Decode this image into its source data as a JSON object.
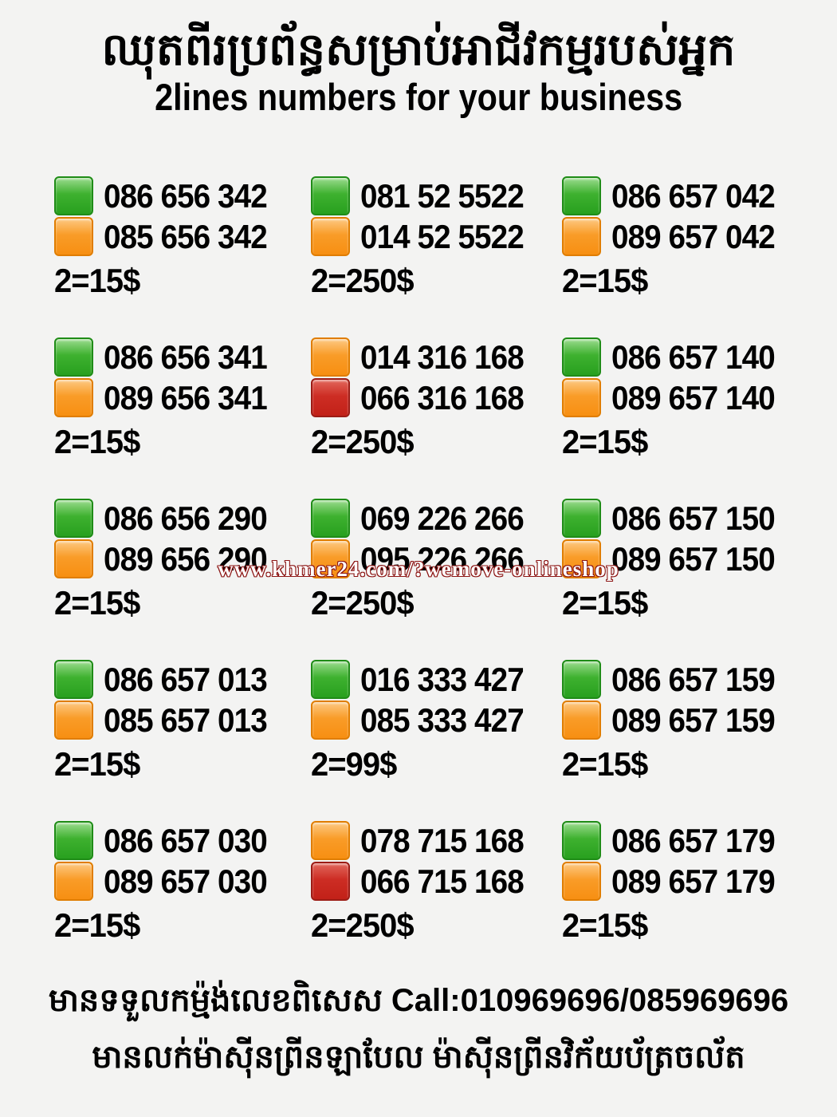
{
  "page": {
    "background_color": "#f3f3f2",
    "swatch_colors": {
      "green": "#2ca023",
      "orange": "#f7941e",
      "red": "#c9241c"
    }
  },
  "header": {
    "title_khmer": "ឈុតពីរប្រព័ន្ធសម្រាប់អាជីវកម្មរបស់អ្នក",
    "subtitle": "2lines numbers for your business"
  },
  "listings": [
    {
      "lines": [
        {
          "color": "green",
          "number": "086 656 342"
        },
        {
          "color": "orange",
          "number": "085 656 342"
        }
      ],
      "price": "2=15$"
    },
    {
      "lines": [
        {
          "color": "green",
          "number": "081 52 5522"
        },
        {
          "color": "orange",
          "number": "014 52 5522"
        }
      ],
      "price": "2=250$"
    },
    {
      "lines": [
        {
          "color": "green",
          "number": "086 657 042"
        },
        {
          "color": "orange",
          "number": "089 657 042"
        }
      ],
      "price": "2=15$"
    },
    {
      "lines": [
        {
          "color": "green",
          "number": "086 656 341"
        },
        {
          "color": "orange",
          "number": "089 656 341"
        }
      ],
      "price": "2=15$"
    },
    {
      "lines": [
        {
          "color": "orange",
          "number": "014 316 168"
        },
        {
          "color": "red",
          "number": "066 316 168"
        }
      ],
      "price": "2=250$"
    },
    {
      "lines": [
        {
          "color": "green",
          "number": "086 657 140"
        },
        {
          "color": "orange",
          "number": "089 657 140"
        }
      ],
      "price": "2=15$"
    },
    {
      "lines": [
        {
          "color": "green",
          "number": "086 656 290"
        },
        {
          "color": "orange",
          "number": "089 656 290"
        }
      ],
      "price": "2=15$"
    },
    {
      "lines": [
        {
          "color": "green",
          "number": "069 226 266"
        },
        {
          "color": "orange",
          "number": "095 226 266"
        }
      ],
      "price": "2=250$"
    },
    {
      "lines": [
        {
          "color": "green",
          "number": "086 657 150"
        },
        {
          "color": "orange",
          "number": "089 657 150"
        }
      ],
      "price": "2=15$"
    },
    {
      "lines": [
        {
          "color": "green",
          "number": "086 657 013"
        },
        {
          "color": "orange",
          "number": "085 657 013"
        }
      ],
      "price": "2=15$"
    },
    {
      "lines": [
        {
          "color": "green",
          "number": "016 333 427"
        },
        {
          "color": "orange",
          "number": "085 333 427"
        }
      ],
      "price": "2=99$"
    },
    {
      "lines": [
        {
          "color": "green",
          "number": "086 657 159"
        },
        {
          "color": "orange",
          "number": "089 657 159"
        }
      ],
      "price": "2=15$"
    },
    {
      "lines": [
        {
          "color": "green",
          "number": "086 657 030"
        },
        {
          "color": "orange",
          "number": "089 657 030"
        }
      ],
      "price": "2=15$"
    },
    {
      "lines": [
        {
          "color": "orange",
          "number": "078 715 168"
        },
        {
          "color": "red",
          "number": "066 715 168"
        }
      ],
      "price": "2=250$"
    },
    {
      "lines": [
        {
          "color": "green",
          "number": "086 657 179"
        },
        {
          "color": "orange",
          "number": "089 657 179"
        }
      ],
      "price": "2=15$"
    }
  ],
  "watermark": {
    "text": "www.khmer24.com/?wemove-onlineshop"
  },
  "footer": {
    "line1_khmer": "មានទទួលកម្ម៉ង់លេខពិសេស",
    "line1_call": "Call:010969696/085969696",
    "line2_khmer": "មានលក់ម៉ាស៊ីនព្រីនឡាបែល ម៉ាស៊ីនព្រីនវិក័យប័ត្រចល័ត"
  }
}
